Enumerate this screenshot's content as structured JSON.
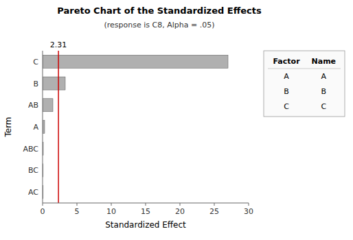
{
  "chart_data": {
    "type": "bar",
    "orientation": "horizontal",
    "title": "Pareto Chart of the Standardized Effects",
    "subtitle": "(response is C8, Alpha = .05)",
    "x_label": "Standardized Effect",
    "y_label": "Term",
    "categories": [
      "AC",
      "BC",
      "ABC",
      "A",
      "AB",
      "B",
      "C"
    ],
    "values": [
      0.08,
      0.08,
      0.1,
      0.3,
      1.5,
      3.3,
      27.0
    ],
    "color": "#b0b0b0",
    "xlim": [
      0,
      30
    ],
    "xticks": [
      0,
      5,
      10,
      15,
      20,
      25,
      30
    ],
    "grid": false,
    "annotations": [
      {
        "x": 2.31,
        "text": "2.31",
        "color": "#cc0000"
      }
    ],
    "factor_table": {
      "headers": [
        "Factor",
        "Name"
      ],
      "rows": [
        [
          "A",
          "A"
        ],
        [
          "B",
          "B"
        ],
        [
          "C",
          "C"
        ]
      ]
    }
  }
}
